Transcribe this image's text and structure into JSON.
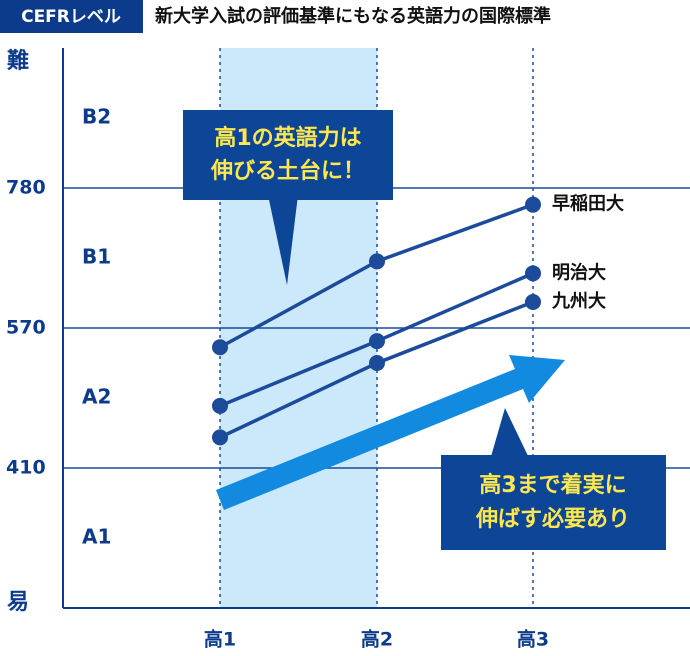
{
  "header": {
    "badge": "CEFRレベル",
    "title": "新大学入試の評価基準にもなる英語力の国際標準"
  },
  "chart_data": {
    "type": "line",
    "y_axis_top": "難",
    "y_axis_bottom": "易",
    "bands": [
      "A1",
      "A2",
      "B1",
      "B2"
    ],
    "categories": [
      "高1",
      "高2",
      "高3"
    ],
    "series": [
      {
        "name": "早稲田大",
        "color": "#1b4b9a",
        "values": [
          548,
          670,
          755
        ]
      },
      {
        "name": "明治大",
        "color": "#1b4b9a",
        "values": [
          481,
          555,
          652
        ]
      },
      {
        "name": "九州大",
        "color": "#1b4b9a",
        "values": [
          445,
          530,
          609
        ]
      }
    ],
    "ylim": [
      250,
      990
    ],
    "yticks": [
      410,
      570,
      780
    ],
    "grid": true,
    "callouts": [
      [
        "高1の英語力は",
        "伸びる土台に！"
      ],
      [
        "高3まで着実に",
        "伸ばす必要あり"
      ]
    ]
  }
}
